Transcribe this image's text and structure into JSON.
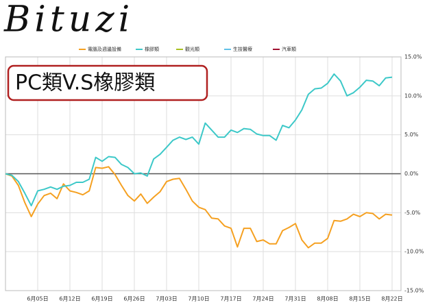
{
  "logo": "Bituzi",
  "chart_data": {
    "type": "line",
    "title": "PC類V.S橡膠類",
    "categories": [
      null,
      null,
      null,
      null,
      null,
      "6月05日",
      null,
      null,
      null,
      null,
      "6月12日",
      null,
      null,
      null,
      null,
      "6月19日",
      null,
      null,
      null,
      null,
      "6月26日",
      null,
      null,
      null,
      null,
      "7月03日",
      null,
      null,
      null,
      null,
      "7月10日",
      null,
      null,
      null,
      null,
      "7月17日",
      null,
      null,
      null,
      null,
      "7月24日",
      null,
      null,
      null,
      null,
      "7月31日",
      null,
      null,
      null,
      null,
      "8月08日",
      null,
      null,
      null,
      null,
      "8月15日",
      null,
      null,
      null,
      null,
      "8月22日"
    ],
    "series": [
      {
        "name": "電腦及週邊設備",
        "color": "#f5a020",
        "values": [
          0,
          -0.3,
          -1.5,
          -3.7,
          -5.5,
          -3.9,
          -2.8,
          -2.5,
          -3.2,
          -1.3,
          -2.2,
          -2.4,
          -2.7,
          -2.2,
          0.8,
          0.7,
          0.9,
          -0.1,
          -1.5,
          -2.8,
          -3.5,
          -2.6,
          -3.8,
          -3.0,
          -2.3,
          -1.0,
          -0.7,
          -0.6,
          -2.0,
          -3.5,
          -4.3,
          -4.6,
          -5.7,
          -5.8,
          -6.7,
          -7.0,
          -9.4,
          -7.0,
          -7.0,
          -8.7,
          -8.5,
          -9.0,
          -9.0,
          -7.3,
          -6.9,
          -6.4,
          -8.5,
          -9.5,
          -8.9,
          -8.9,
          -8.3,
          -6.0,
          -6.1,
          -5.8,
          -5.2,
          -5.5,
          -5.0,
          -5.1,
          -5.8,
          -5.2,
          -5.3
        ]
      },
      {
        "name": "橡膠類",
        "color": "#3cc8c8",
        "values": [
          0,
          -0.2,
          -1.0,
          -2.5,
          -4.1,
          -2.2,
          -2.0,
          -1.7,
          -2.0,
          -1.6,
          -1.5,
          -1.1,
          -1.1,
          -0.7,
          2.1,
          1.6,
          2.2,
          2.1,
          1.2,
          0.8,
          0,
          0.1,
          -0.3,
          1.9,
          2.5,
          3.4,
          4.3,
          4.7,
          4.4,
          4.7,
          3.8,
          6.5,
          5.6,
          4.7,
          4.7,
          5.6,
          5.3,
          5.8,
          5.7,
          5.1,
          4.9,
          4.9,
          4.3,
          6.2,
          5.9,
          6.9,
          8.2,
          10.2,
          10.9,
          11.0,
          11.6,
          12.8,
          11.9,
          10.0,
          10.4,
          11.1,
          12.0,
          11.9,
          11.3,
          12.3,
          12.4
        ]
      },
      {
        "name": "觀光類",
        "color": "#a8c020",
        "values": [
          null,
          null,
          null,
          null,
          null,
          null,
          null,
          null,
          null,
          null,
          null,
          null,
          null,
          null,
          null,
          null,
          null,
          null,
          null,
          null,
          null,
          null,
          null,
          null,
          null,
          null,
          null,
          null,
          null,
          null,
          null,
          null,
          null,
          null,
          null,
          null,
          null,
          null,
          null,
          null,
          null,
          null,
          null,
          null,
          null,
          null,
          null,
          null,
          null,
          null,
          null,
          null,
          null,
          null,
          null,
          null,
          null,
          null,
          null,
          null,
          null
        ]
      },
      {
        "name": "生技醫療",
        "color": "#60c0e8",
        "values": [
          null,
          null,
          null,
          null,
          null,
          null,
          null,
          null,
          null,
          null,
          null,
          null,
          null,
          null,
          null,
          null,
          null,
          null,
          null,
          null,
          null,
          null,
          null,
          null,
          null,
          null,
          null,
          null,
          null,
          null,
          null,
          null,
          null,
          null,
          null,
          null,
          null,
          null,
          null,
          null,
          null,
          null,
          null,
          null,
          null,
          null,
          null,
          null,
          null,
          null,
          null,
          null,
          null,
          null,
          null,
          null,
          null,
          null,
          null,
          null,
          null
        ]
      },
      {
        "name": "汽車類",
        "color": "#a01030",
        "values": [
          null,
          null,
          null,
          null,
          null,
          null,
          null,
          null,
          null,
          null,
          null,
          null,
          null,
          null,
          null,
          null,
          null,
          null,
          null,
          null,
          null,
          null,
          null,
          null,
          null,
          null,
          null,
          null,
          null,
          null,
          null,
          null,
          null,
          null,
          null,
          null,
          null,
          null,
          null,
          null,
          null,
          null,
          null,
          null,
          null,
          null,
          null,
          null,
          null,
          null,
          null,
          null,
          null,
          null,
          null,
          null,
          null,
          null,
          null,
          null,
          null
        ]
      }
    ],
    "ylim": [
      -15,
      15
    ],
    "yticks": [
      {
        "value": 15,
        "label": "15.0%"
      },
      {
        "value": 10,
        "label": "10.0%"
      },
      {
        "value": 5,
        "label": "5.0%"
      },
      {
        "value": 0,
        "label": "0.0%"
      },
      {
        "value": -5,
        "label": "-5.0%"
      },
      {
        "value": -10,
        "label": "-10.0%"
      },
      {
        "value": -15,
        "label": "-15.0%"
      }
    ],
    "grid": true,
    "legend": "top"
  }
}
